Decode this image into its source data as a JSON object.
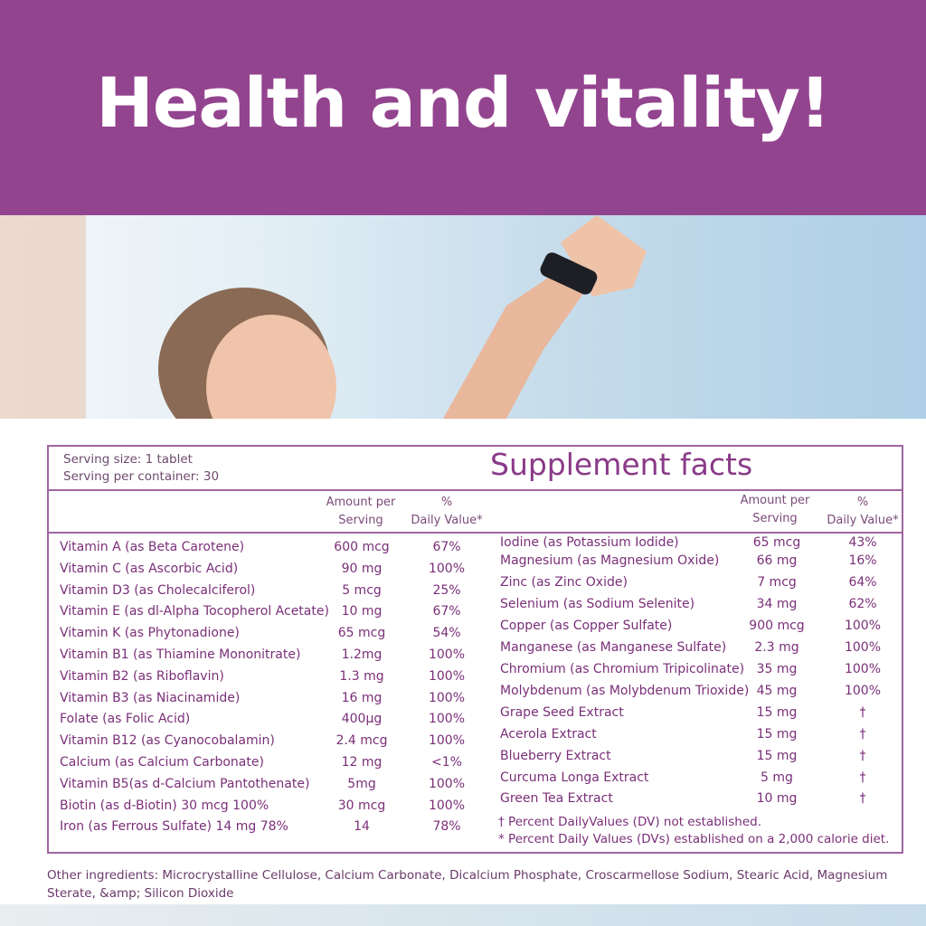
{
  "banner": {
    "headline": "Health and vitality!",
    "color": "#93448f"
  },
  "photo": {
    "description_icon": "woman-raising-arms-photo"
  },
  "facts": {
    "title": "Supplement facts",
    "serving_size": "Serving size: 1 tablet",
    "servings_per_container": "Serving per container: 30",
    "col_amount": [
      "Amount per",
      "Serving"
    ],
    "col_dv": [
      "%",
      "Daily Value*"
    ],
    "left_rows": [
      {
        "name": "Vitamin A (as Beta Carotene)",
        "amount": "600 mcg",
        "dv": "67%"
      },
      {
        "name": "Vitamin C (as Ascorbic Acid)",
        "amount": "90 mg",
        "dv": "100%"
      },
      {
        "name": "Vitamin D3 (as Cholecalciferol)",
        "amount": "5 mcg",
        "dv": "25%"
      },
      {
        "name": "Vitamin E (as dl-Alpha Tocopherol Acetate)",
        "amount": "10 mg",
        "dv": "67%"
      },
      {
        "name": "Vitamin K (as Phytonadione)",
        "amount": "65 mcg",
        "dv": "54%"
      },
      {
        "name": "Vitamin B1 (as Thiamine Mononitrate)",
        "amount": "1.2mg",
        "dv": "100%"
      },
      {
        "name": "Vitamin B2 (as Riboflavin)",
        "amount": "1.3 mg",
        "dv": "100%"
      },
      {
        "name": "Vitamin B3 (as Niacinamide)",
        "amount": "16 mg",
        "dv": "100%"
      },
      {
        "name": "Folate (as Folic Acid)",
        "amount": "400µg",
        "dv": "100%"
      },
      {
        "name": "Vitamin B12 (as Cyanocobalamin)",
        "amount": "2.4 mcg",
        "dv": "100%"
      },
      {
        "name": "Calcium (as Calcium Carbonate)",
        "amount": "12 mg",
        "dv": "<1%"
      },
      {
        "name": "Vitamin B5(as d-Calcium Pantothenate)",
        "amount": "5mg",
        "dv": "100%"
      },
      {
        "name": "Biotin (as d-Biotin) 30 mcg 100%",
        "amount": "30 mcg",
        "dv": "100%"
      },
      {
        "name": "Iron (as Ferrous Sulfate) 14 mg 78%",
        "amount": "14",
        "dv": "78%"
      }
    ],
    "right_rows": [
      {
        "name": "Iodine (as Potassium Iodide)",
        "amount": "65 mcg",
        "dv": "43%"
      },
      {
        "name": "Magnesium (as Magnesium Oxide)",
        "amount": "66 mg",
        "dv": "16%"
      },
      {
        "name": "Zinc (as Zinc Oxide)",
        "amount": "7 mcg",
        "dv": "64%"
      },
      {
        "name": "Selenium (as Sodium Selenite)",
        "amount": "34 mg",
        "dv": "62%"
      },
      {
        "name": "Copper (as Copper Sulfate)",
        "amount": "900 mcg",
        "dv": "100%"
      },
      {
        "name": "Manganese (as Manganese Sulfate)",
        "amount": "2.3 mg",
        "dv": "100%"
      },
      {
        "name": "Chromium (as Chromium Tripicolinate)",
        "amount": "35 mg",
        "dv": "100%"
      },
      {
        "name": "Molybdenum (as Molybdenum Trioxide)",
        "amount": "45 mg",
        "dv": "100%"
      },
      {
        "name": "Grape Seed Extract",
        "amount": "15 mg",
        "dv": "†"
      },
      {
        "name": "Acerola Extract",
        "amount": "15 mg",
        "dv": "†"
      },
      {
        "name": "Blueberry Extract",
        "amount": "15 mg",
        "dv": "†"
      },
      {
        "name": "Curcuma Longa Extract",
        "amount": "5 mg",
        "dv": "†"
      },
      {
        "name": "Green Tea Extract",
        "amount": "10 mg",
        "dv": "†"
      }
    ],
    "footnote_dagger": "† Percent DailyValues (DV) not established.",
    "footnote_star": "* Percent Daily Values (DVs) established on a 2,000 calorie diet."
  },
  "other_ingredients": "Other ingredients:  Microcrystalline Cellulose, Calcium Carbonate, Dicalcium Phosphate, Croscarmellose Sodium, Stearic Acid,  Magnesium Sterate, &amp; Silicon Dioxide"
}
